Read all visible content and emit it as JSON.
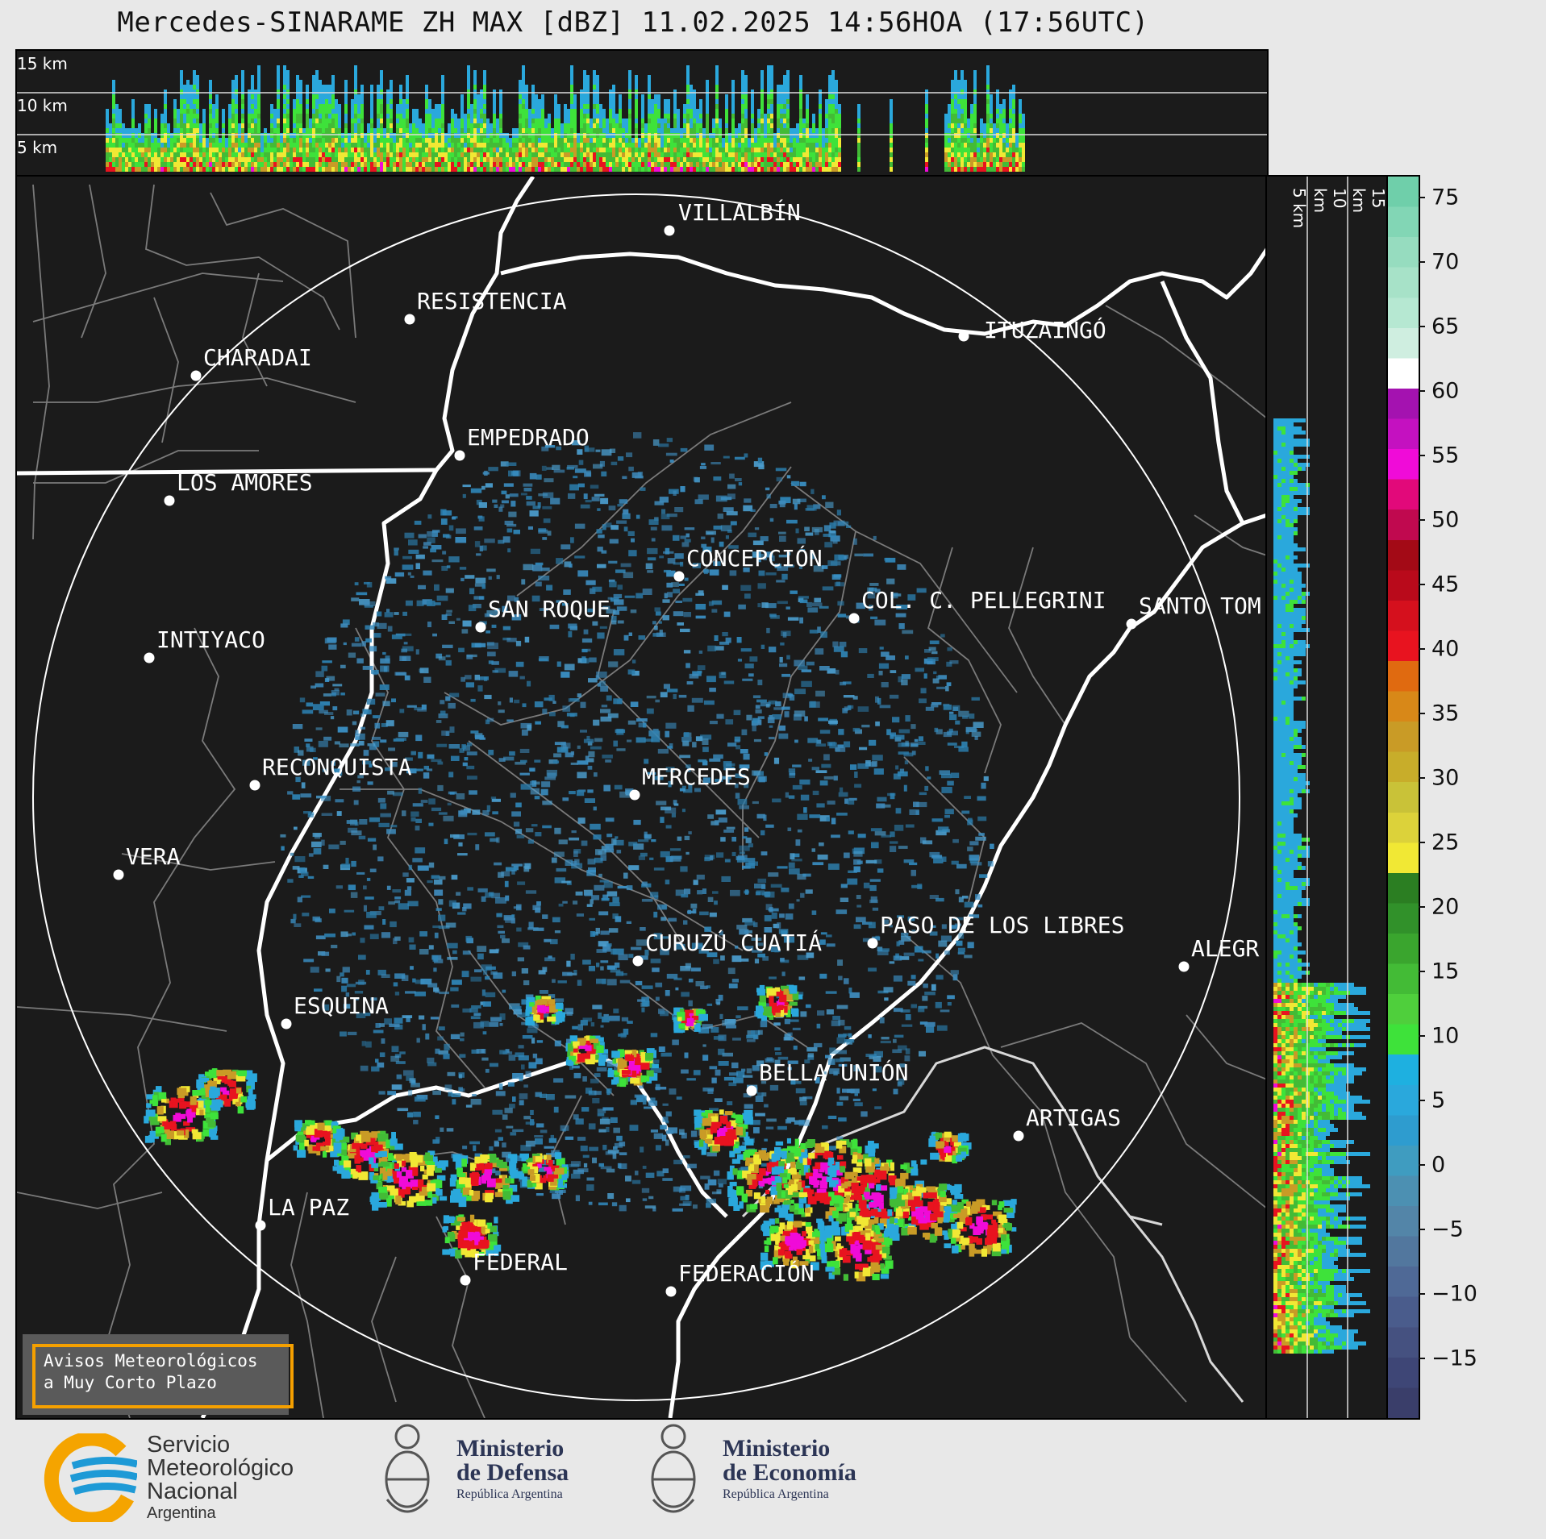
{
  "title": "Mercedes-SINARAME ZH MAX [dBZ] 11.02.2025 14:56HOA (17:56UTC)",
  "top_panel_km_labels": [
    "15 km",
    "10 km",
    "5 km"
  ],
  "side_panel_km_labels": [
    "5 km",
    "10 km",
    "15 km"
  ],
  "colorbar": {
    "unit": "dBZ",
    "ticks": [
      "75",
      "70",
      "65",
      "60",
      "55",
      "50",
      "45",
      "40",
      "35",
      "30",
      "25",
      "20",
      "15",
      "10",
      "5",
      "0",
      "−5",
      "−10",
      "−15"
    ],
    "colors": [
      "#3a3e6a",
      "#3e4676",
      "#455180",
      "#4a5c8c",
      "#4f6996",
      "#52779e",
      "#5385a8",
      "#4c90b2",
      "#3f9cc0",
      "#2e9ccf",
      "#2aa8dc",
      "#1eb0e0",
      "#3ee23a",
      "#4fcf3c",
      "#43bb36",
      "#3aa52e",
      "#31912a",
      "#2b7e22",
      "#f1e834",
      "#dcd23a",
      "#c9c238",
      "#c8ad2a",
      "#c99b26",
      "#d88818",
      "#e06a10",
      "#e8131f",
      "#d5101d",
      "#b90a1b",
      "#a30a16",
      "#c0094f",
      "#e2097a",
      "#f00bd8",
      "#c411c0",
      "#a412b0",
      "#ffffff",
      "#cfeee0",
      "#b6e8d2",
      "#a7e2c8",
      "#96dcbf",
      "#82d6b5",
      "#6fcfaa"
    ]
  },
  "cities": [
    {
      "name": "VILLALBÍN"
    },
    {
      "name": "RESISTENCIA"
    },
    {
      "name": "CHARADAI"
    },
    {
      "name": "ITUZAINGÓ"
    },
    {
      "name": "EMPEDRADO"
    },
    {
      "name": "LOS AMORES"
    },
    {
      "name": "CONCEPCIÓN"
    },
    {
      "name": "SAN ROQUE"
    },
    {
      "name": "COL. C. PELLEGRINI"
    },
    {
      "name": "SANTO TOM"
    },
    {
      "name": "INTIYACO"
    },
    {
      "name": "MERCEDES"
    },
    {
      "name": "RECONQUISTA"
    },
    {
      "name": "VERA"
    },
    {
      "name": "PASO DE LOS LIBRES"
    },
    {
      "name": "CURUZÚ CUATIÁ"
    },
    {
      "name": "ALEGR"
    },
    {
      "name": "ESQUINA"
    },
    {
      "name": "BELLA UNIÓN"
    },
    {
      "name": "ARTIGAS"
    },
    {
      "name": "LA PAZ"
    },
    {
      "name": "FEDERAL"
    },
    {
      "name": "FEDERACIÓN"
    }
  ],
  "warning": {
    "line1": "Avisos Meteorológicos",
    "line2": "a Muy Corto Plazo"
  },
  "logos": {
    "smn": {
      "line1": "Servicio",
      "line2": "Meteorológico",
      "line3": "Nacional",
      "line4": "Argentina"
    },
    "defensa": {
      "line1": "Ministerio",
      "line2": "de Defensa",
      "line3": "República Argentina"
    },
    "economia": {
      "line1": "Ministerio",
      "line2": "de Economía",
      "line3": "República Argentina"
    }
  }
}
